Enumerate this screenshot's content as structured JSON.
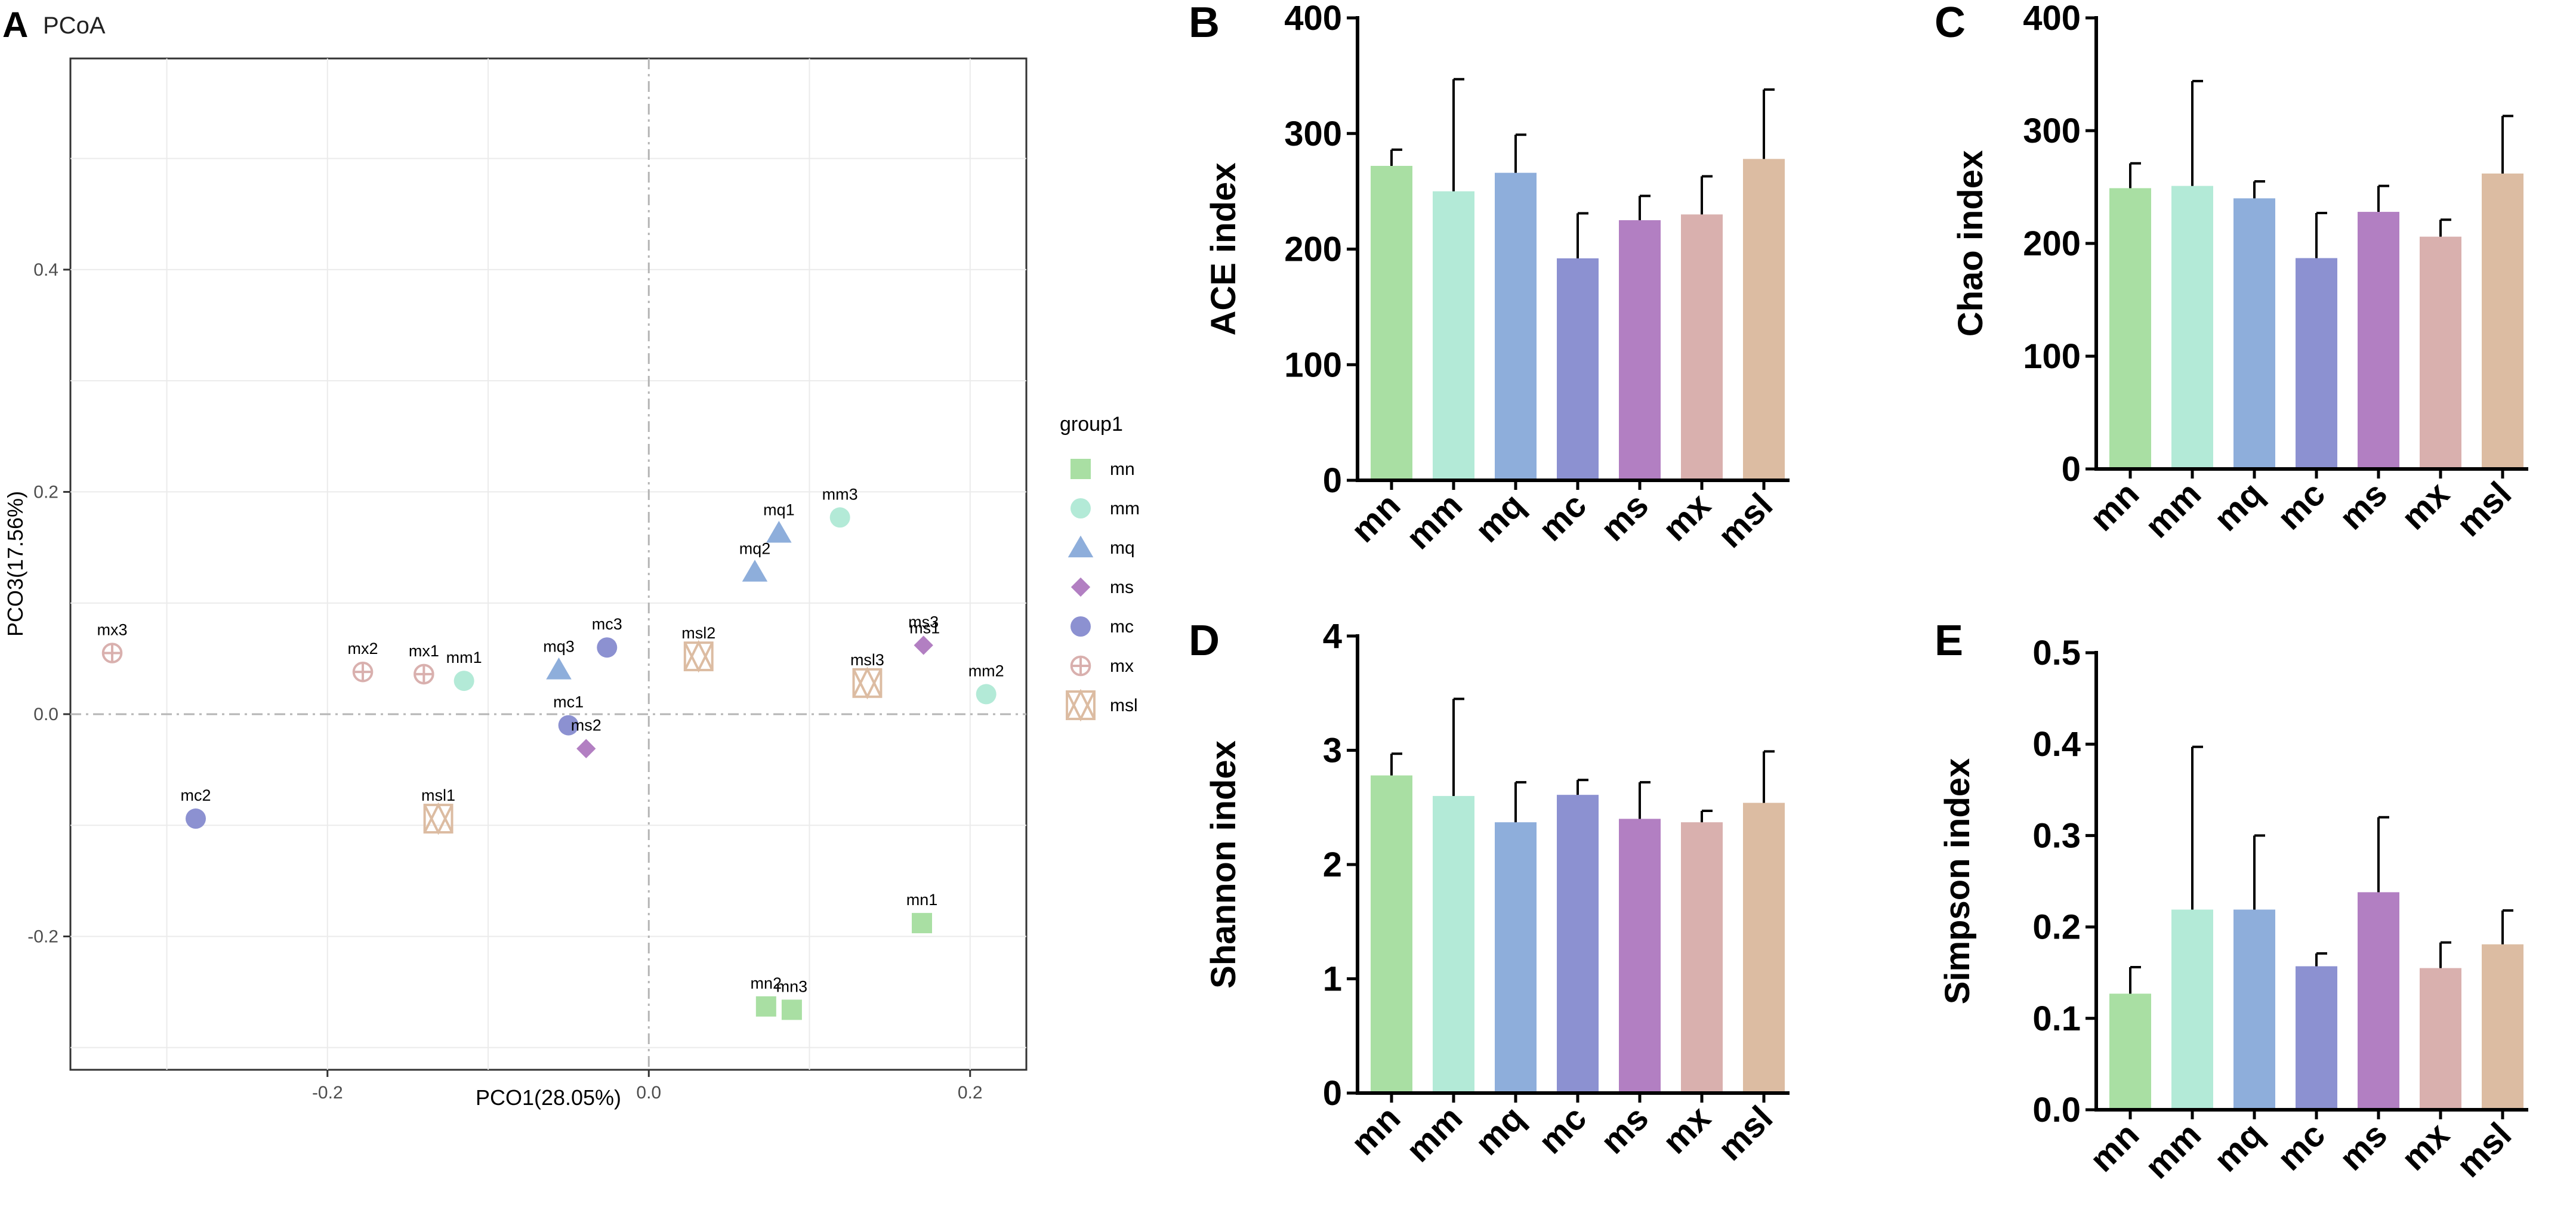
{
  "colors": {
    "mn": "#a9dfa3",
    "mm": "#b3ead7",
    "mq": "#8eaedb",
    "mc": "#8c91d1",
    "ms": "#b27fc2",
    "mx": "#d9b0ae",
    "msl": "#dcbca2"
  },
  "chart_data": [
    {
      "panel": "A",
      "type": "scatter",
      "title": "PCoA",
      "xlabel": "PCO1(28.05%)",
      "ylabel": "PCO3(17.56%)",
      "xlim": [
        -0.36,
        0.235
      ],
      "ylim": [
        -0.32,
        0.59
      ],
      "xticks": [
        -0.2,
        0.0,
        0.2
      ],
      "xtick_labels": [
        "-0.2",
        "0.0",
        "0.2"
      ],
      "yticks": [
        -0.2,
        0.0,
        0.2,
        0.4
      ],
      "ytick_labels": [
        "-0.2",
        "0.0",
        "0.2",
        "0.4"
      ],
      "legend_title": "group1",
      "legend": [
        "mn",
        "mm",
        "mq",
        "ms",
        "mc",
        "mx",
        "msl"
      ],
      "points": [
        {
          "label": "mx3",
          "group": "mx",
          "x": -0.334,
          "y": 0.055
        },
        {
          "label": "mx2",
          "group": "mx",
          "x": -0.178,
          "y": 0.038
        },
        {
          "label": "mx1",
          "group": "mx",
          "x": -0.14,
          "y": 0.036
        },
        {
          "label": "mm1",
          "group": "mm",
          "x": -0.115,
          "y": 0.03
        },
        {
          "label": "mq3",
          "group": "mq",
          "x": -0.056,
          "y": 0.04
        },
        {
          "label": "mc3",
          "group": "mc",
          "x": -0.026,
          "y": 0.06
        },
        {
          "label": "mc1",
          "group": "mc",
          "x": -0.05,
          "y": -0.01
        },
        {
          "label": "ms2",
          "group": "ms",
          "x": -0.039,
          "y": -0.031
        },
        {
          "label": "mc2",
          "group": "mc",
          "x": -0.282,
          "y": -0.094
        },
        {
          "label": "msl1",
          "group": "msl",
          "x": -0.131,
          "y": -0.094
        },
        {
          "label": "msl2",
          "group": "msl",
          "x": 0.031,
          "y": 0.052
        },
        {
          "label": "mq1",
          "group": "mq",
          "x": 0.081,
          "y": 0.163
        },
        {
          "label": "mq2",
          "group": "mq",
          "x": 0.066,
          "y": 0.128
        },
        {
          "label": "mm3",
          "group": "mm",
          "x": 0.119,
          "y": 0.177
        },
        {
          "label": "ms3",
          "group": "ms",
          "x": 0.171,
          "y": 0.062
        },
        {
          "label": "msl3",
          "group": "msl",
          "x": 0.136,
          "y": 0.028
        },
        {
          "label": "mm2",
          "group": "mm",
          "x": 0.21,
          "y": 0.018
        },
        {
          "label": "mn1",
          "group": "mn",
          "x": 0.17,
          "y": -0.188
        },
        {
          "label": "mn2",
          "group": "mn",
          "x": 0.073,
          "y": -0.263
        },
        {
          "label": "mn3",
          "group": "mn",
          "x": 0.089,
          "y": -0.266
        }
      ],
      "overlap_label": {
        "text": "ms1",
        "group_point": "ms3"
      }
    },
    {
      "panel": "B",
      "type": "bar",
      "ylabel": "ACE index",
      "categories": [
        "mn",
        "mm",
        "mq",
        "mc",
        "ms",
        "mx",
        "msl"
      ],
      "values": [
        272,
        250,
        266,
        192,
        225,
        230,
        278
      ],
      "errors": [
        14,
        97,
        33,
        39,
        21,
        33,
        60
      ],
      "ylim": [
        0,
        400
      ],
      "yticks": [
        0,
        100,
        200,
        300,
        400
      ],
      "ytick_labels": [
        "0",
        "100",
        "200",
        "300",
        "400"
      ]
    },
    {
      "panel": "C",
      "type": "bar",
      "ylabel": "Chao index",
      "categories": [
        "mn",
        "mm",
        "mq",
        "mc",
        "ms",
        "mx",
        "msl"
      ],
      "values": [
        249,
        251,
        240,
        187,
        228,
        206,
        262
      ],
      "errors": [
        22,
        93,
        15,
        40,
        23,
        15,
        51
      ],
      "ylim": [
        0,
        400
      ],
      "yticks": [
        0,
        100,
        200,
        300,
        400
      ],
      "ytick_labels": [
        "0",
        "100",
        "200",
        "300",
        "400"
      ]
    },
    {
      "panel": "D",
      "type": "bar",
      "ylabel": "Shannon index",
      "categories": [
        "mn",
        "mm",
        "mq",
        "mc",
        "ms",
        "mx",
        "msl"
      ],
      "values": [
        2.78,
        2.6,
        2.37,
        2.61,
        2.4,
        2.37,
        2.54
      ],
      "errors": [
        0.19,
        0.85,
        0.35,
        0.13,
        0.32,
        0.1,
        0.45
      ],
      "ylim": [
        0,
        4
      ],
      "yticks": [
        0,
        1,
        2,
        3,
        4
      ],
      "ytick_labels": [
        "0",
        "1",
        "2",
        "3",
        "4"
      ]
    },
    {
      "panel": "E",
      "type": "bar",
      "ylabel": "Simpson index",
      "categories": [
        "mn",
        "mm",
        "mq",
        "mc",
        "ms",
        "mx",
        "msl"
      ],
      "values": [
        0.127,
        0.219,
        0.219,
        0.157,
        0.238,
        0.155,
        0.181
      ],
      "errors": [
        0.029,
        0.178,
        0.081,
        0.014,
        0.082,
        0.028,
        0.037
      ],
      "ylim": [
        0,
        0.5
      ],
      "yticks": [
        0,
        0.1,
        0.2,
        0.3,
        0.4,
        0.5
      ],
      "ytick_labels": [
        "0.0",
        "0.1",
        "0.2",
        "0.3",
        "0.4",
        "0.5"
      ]
    }
  ]
}
